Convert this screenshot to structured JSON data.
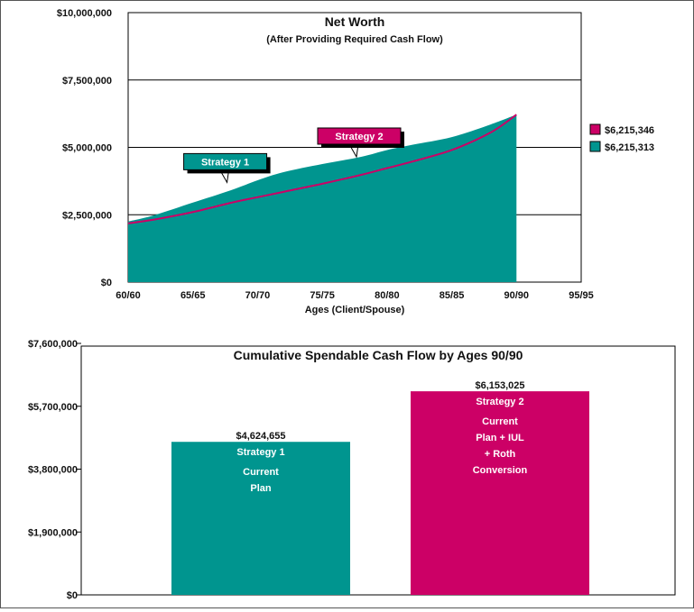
{
  "colors": {
    "teal": "#00958f",
    "magenta": "#cc0066",
    "grid": "#000000"
  },
  "chart_data": [
    {
      "type": "area",
      "title": "Net Worth",
      "subtitle": "(After Providing Required Cash Flow)",
      "xlabel": "Ages (Client/Spouse)",
      "ylabel": "",
      "x_ticks": [
        "60/60",
        "65/65",
        "70/70",
        "75/75",
        "80/80",
        "85/85",
        "90/90",
        "95/95"
      ],
      "y_ticks": [
        "$0",
        "$2,500,000",
        "$5,000,000",
        "$7,500,000",
        "$10,000,000"
      ],
      "ylim": [
        0,
        10000000
      ],
      "grid": true,
      "legend_position": "right",
      "series": [
        {
          "name": "$6,215,313",
          "render": "area",
          "color": "#00958f",
          "points": [
            [
              60,
              2250000
            ],
            [
              62,
              2480000
            ],
            [
              65,
              2950000
            ],
            [
              68,
              3420000
            ],
            [
              70,
              3780000
            ],
            [
              72,
              4080000
            ],
            [
              75,
              4380000
            ],
            [
              78,
              4650000
            ],
            [
              80,
              4900000
            ],
            [
              82,
              5100000
            ],
            [
              85,
              5380000
            ],
            [
              88,
              5850000
            ],
            [
              90,
              6215313
            ]
          ]
        },
        {
          "name": "$6,215,346",
          "render": "line",
          "color": "#cc0066",
          "points": [
            [
              60,
              2180000
            ],
            [
              62,
              2320000
            ],
            [
              65,
              2600000
            ],
            [
              68,
              2950000
            ],
            [
              70,
              3150000
            ],
            [
              72,
              3350000
            ],
            [
              75,
              3650000
            ],
            [
              78,
              3980000
            ],
            [
              80,
              4230000
            ],
            [
              82,
              4480000
            ],
            [
              85,
              4900000
            ],
            [
              88,
              5550000
            ],
            [
              90,
              6215346
            ]
          ]
        }
      ],
      "callouts": [
        {
          "label": "Strategy 1",
          "x": 67.5,
          "y": 3900000,
          "color": "#00958f"
        },
        {
          "label": "Strategy 2",
          "x": 77.5,
          "y": 4850000,
          "color": "#cc0066"
        }
      ]
    },
    {
      "type": "bar",
      "title": "Cumulative Spendable Cash Flow by Ages 90/90",
      "categories": [
        "Strategy 1",
        "Strategy 2"
      ],
      "values": [
        4624655,
        6153025
      ],
      "value_labels": [
        "$4,624,655",
        "$6,153,025"
      ],
      "bar_colors": [
        "#00958f",
        "#cc0066"
      ],
      "bar_text": [
        [
          "Strategy 1",
          "Current",
          "Plan"
        ],
        [
          "Strategy 2",
          "Current",
          "Plan + IUL",
          "+ Roth",
          "Conversion"
        ]
      ],
      "y_ticks": [
        "$0",
        "$1,900,000",
        "$3,800,000",
        "$5,700,000",
        "$7,600,000"
      ],
      "ylim": [
        0,
        7600000
      ],
      "xlabel": "",
      "ylabel": "",
      "grid": false
    }
  ]
}
